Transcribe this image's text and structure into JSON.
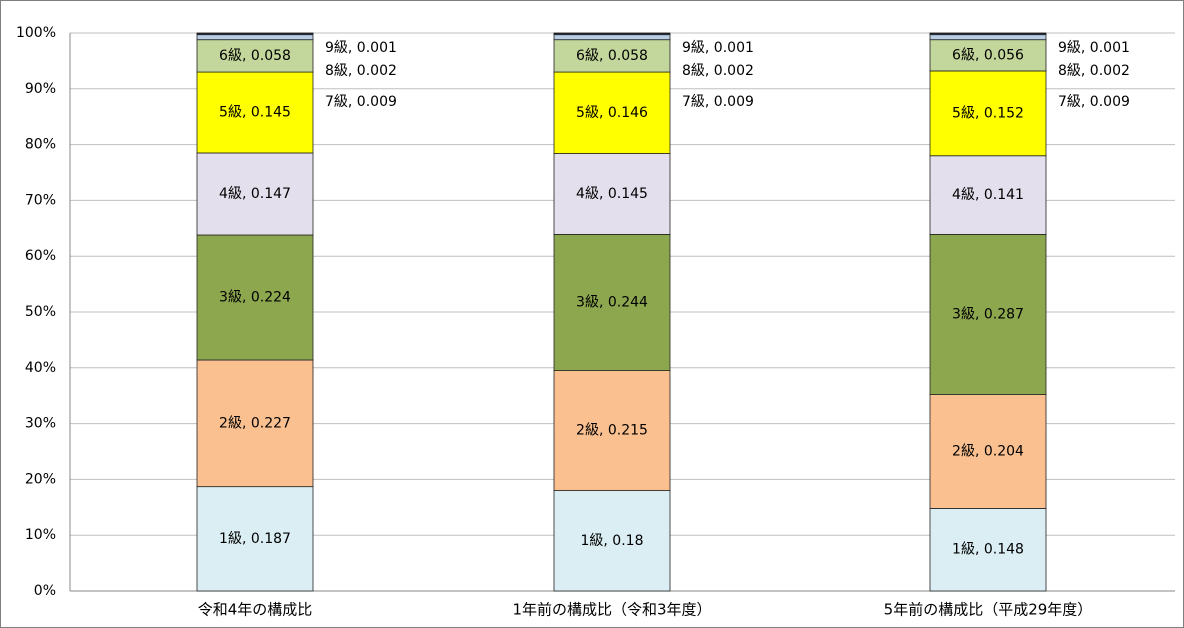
{
  "chart_data": {
    "type": "stacked_bar",
    "categories": [
      "令和4年の構成比",
      "1年前の構成比（令和3年度）",
      "5年前の構成比（平成29年度）"
    ],
    "series": [
      {
        "name": "1級",
        "color": "#daeef3",
        "values": [
          0.187,
          0.18,
          0.148
        ],
        "value_labels": [
          "1級, 0.187",
          "1級, 0.18",
          "1級, 0.148"
        ]
      },
      {
        "name": "2級",
        "color": "#fac090",
        "values": [
          0.227,
          0.215,
          0.204
        ],
        "value_labels": [
          "2級, 0.227",
          "2級, 0.215",
          "2級, 0.204"
        ]
      },
      {
        "name": "3級",
        "color": "#8da74f",
        "values": [
          0.224,
          0.244,
          0.287
        ],
        "value_labels": [
          "3級, 0.224",
          "3級, 0.244",
          "3級, 0.287"
        ]
      },
      {
        "name": "4級",
        "color": "#e4dfec",
        "values": [
          0.147,
          0.145,
          0.141
        ],
        "value_labels": [
          "4級, 0.147",
          "4級, 0.145",
          "4級, 0.141"
        ]
      },
      {
        "name": "5級",
        "color": "#ffff00",
        "values": [
          0.145,
          0.146,
          0.152
        ],
        "value_labels": [
          "5級, 0.145",
          "5級, 0.146",
          "5級, 0.152"
        ]
      },
      {
        "name": "6級",
        "color": "#c3d69b",
        "values": [
          0.058,
          0.058,
          0.056
        ],
        "value_labels": [
          "6級, 0.058",
          "6級, 0.058",
          "6級, 0.056"
        ]
      },
      {
        "name": "7級",
        "color": "#b9cde5",
        "values": [
          0.009,
          0.009,
          0.009
        ],
        "value_labels": [
          "7級, 0.009",
          "7級, 0.009",
          "7級, 0.009"
        ]
      },
      {
        "name": "8級",
        "color": "#1f497d",
        "values": [
          0.002,
          0.002,
          0.002
        ],
        "value_labels": [
          "8級, 0.002",
          "8級, 0.002",
          "8級, 0.002"
        ]
      },
      {
        "name": "9級",
        "color": "#000000",
        "values": [
          0.001,
          0.001,
          0.001
        ],
        "value_labels": [
          "9級, 0.001",
          "9級, 0.001",
          "9級, 0.001"
        ]
      }
    ],
    "ylim": [
      0,
      1
    ],
    "yticks": [
      {
        "value": 0,
        "label": "0%"
      },
      {
        "value": 0.1,
        "label": "10%"
      },
      {
        "value": 0.2,
        "label": "20%"
      },
      {
        "value": 0.3,
        "label": "30%"
      },
      {
        "value": 0.4,
        "label": "40%"
      },
      {
        "value": 0.5,
        "label": "50%"
      },
      {
        "value": 0.6,
        "label": "60%"
      },
      {
        "value": 0.7,
        "label": "70%"
      },
      {
        "value": 0.8,
        "label": "80%"
      },
      {
        "value": 0.9,
        "label": "90%"
      },
      {
        "value": 1,
        "label": "100%"
      }
    ],
    "grid": true
  }
}
